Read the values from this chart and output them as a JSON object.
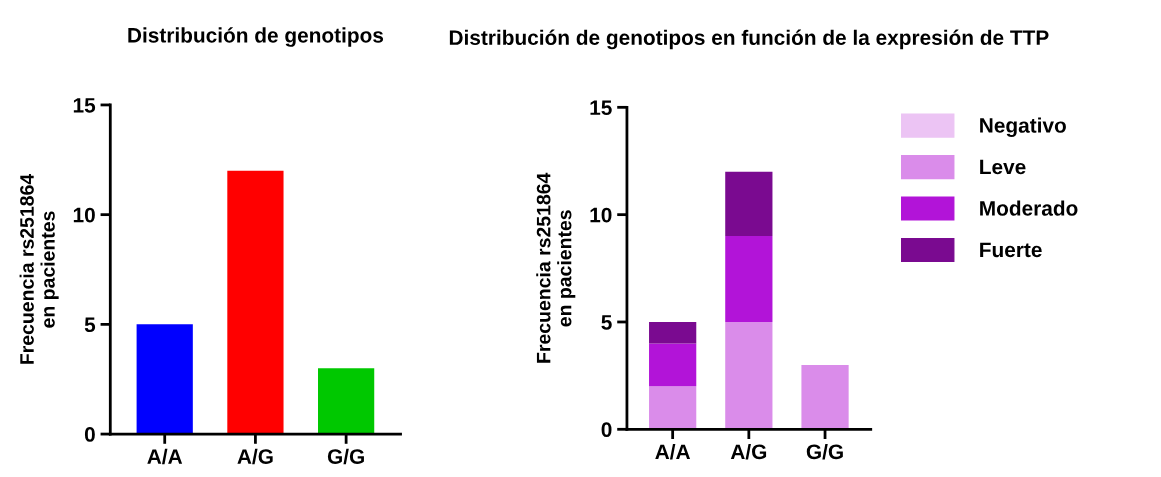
{
  "chart_data": [
    {
      "type": "bar",
      "title": "Distribución de genotipos",
      "ylabel": "Frecuencia rs251864\nen pacientes",
      "categories": [
        "A/A",
        "A/G",
        "G/G"
      ],
      "values": [
        5,
        12,
        3
      ],
      "colors": [
        "#0000ff",
        "#ff0000",
        "#00c800"
      ],
      "ylim": [
        0,
        15
      ],
      "yticks": [
        0,
        5,
        10,
        15
      ],
      "grid": false,
      "legend": false
    },
    {
      "type": "bar",
      "title": "Distribución de genotipos en función de la expresión de TTP",
      "ylabel": "Frecuencia rs251864\nen pacientes",
      "categories": [
        "A/A",
        "A/G",
        "G/G"
      ],
      "stacked": true,
      "ylim": [
        0,
        15
      ],
      "yticks": [
        0,
        5,
        10,
        15
      ],
      "grid": false,
      "legend": "right",
      "series": [
        {
          "name": "Negativo",
          "color": "#ecc4f4",
          "values": [
            0,
            0,
            0
          ]
        },
        {
          "name": "Leve",
          "color": "#da8cea",
          "values": [
            2,
            5,
            3
          ]
        },
        {
          "name": "Moderado",
          "color": "#b214d8",
          "values": [
            2,
            4,
            0
          ]
        },
        {
          "name": "Fuerte",
          "color": "#7a0a90",
          "values": [
            1,
            3,
            0
          ]
        }
      ]
    }
  ]
}
